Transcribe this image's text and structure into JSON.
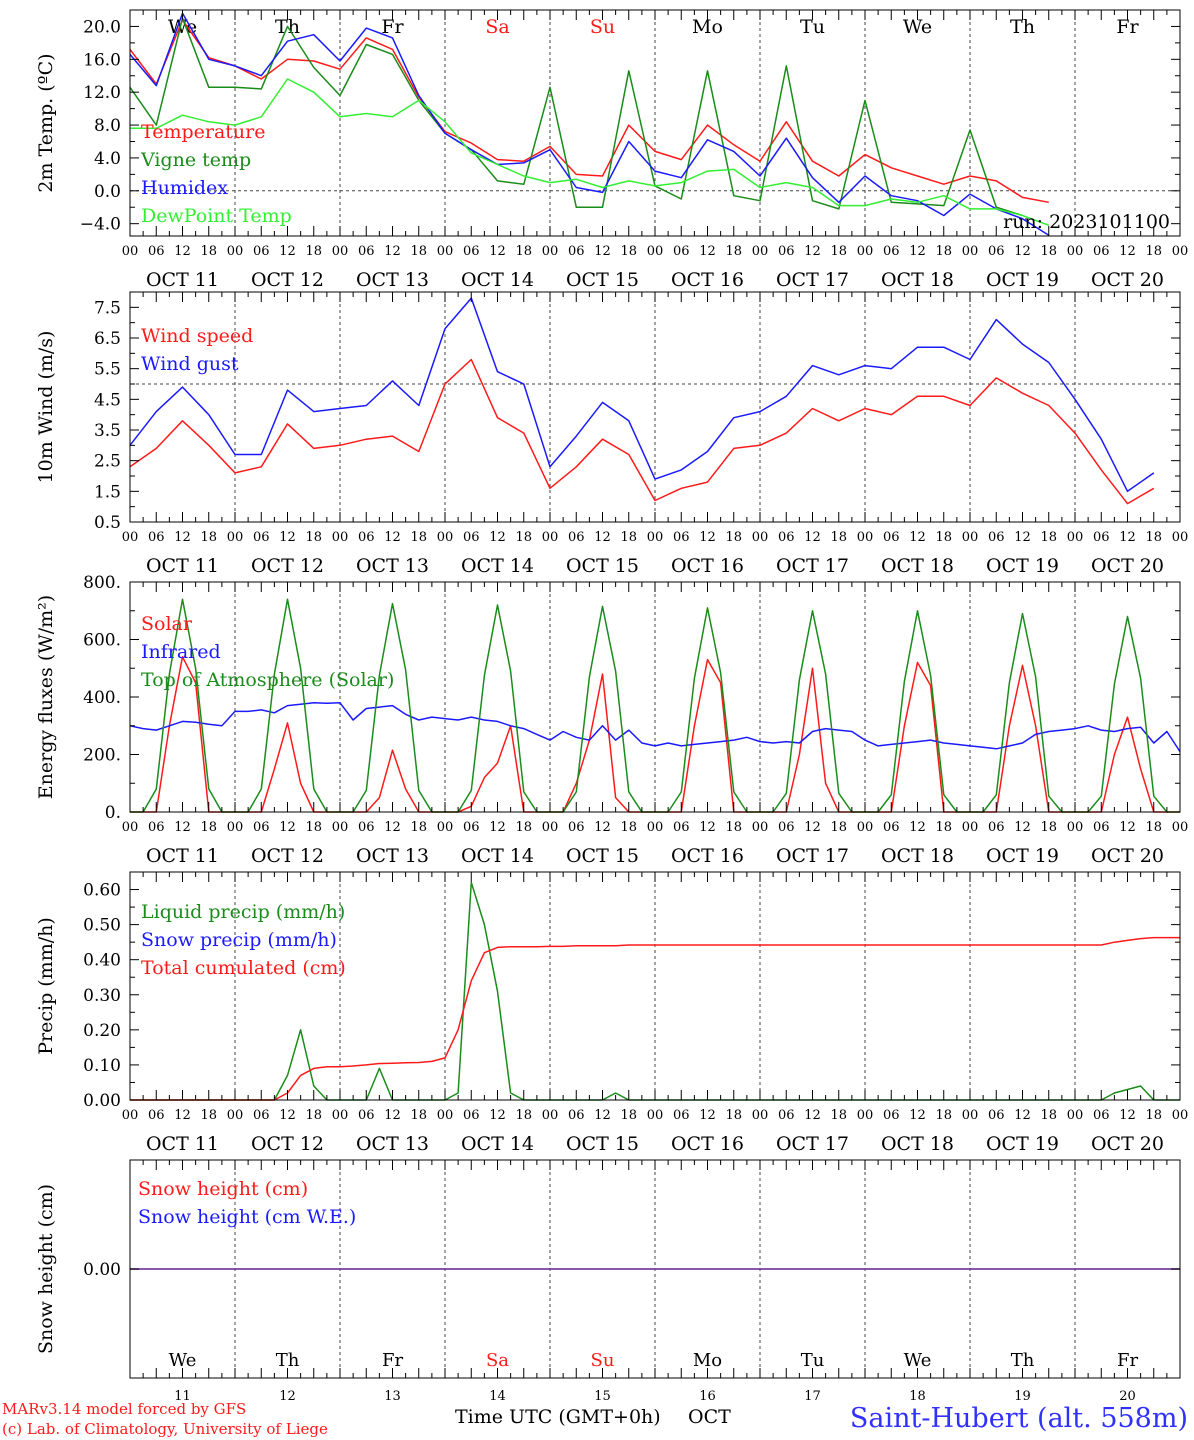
{
  "colors": {
    "red": "#ff1a1a",
    "green": "#1a8c1a",
    "blue": "#1a1aff",
    "lightgreen": "#33ee33",
    "purple": "#7a3fa0",
    "frame": "#000000",
    "grid": "#444444",
    "station": "#3030ff"
  },
  "days": {
    "weekdays": [
      "We",
      "Th",
      "Fr",
      "Sa",
      "Su",
      "Mo",
      "Tu",
      "We",
      "Th",
      "Fr"
    ],
    "weekend_flags": [
      false,
      false,
      false,
      true,
      true,
      false,
      false,
      false,
      false,
      false
    ],
    "dates": [
      "OCT 11",
      "OCT 12",
      "OCT 13",
      "OCT 14",
      "OCT 15",
      "OCT 16",
      "OCT 17",
      "OCT 18",
      "OCT 19",
      "OCT 20"
    ],
    "day_numbers": [
      "11",
      "12",
      "13",
      "14",
      "15",
      "16",
      "17",
      "18",
      "19",
      "20"
    ],
    "hour_ticks": [
      "00",
      "06",
      "12",
      "18"
    ],
    "end_tick": "00"
  },
  "footer": {
    "model": "MARv3.14 model forced by GFS",
    "lab": "(c) Lab. of Climatology, University of Liege",
    "axis": "Time UTC (GMT+0h)",
    "month": "OCT",
    "station": "Saint-Hubert (alt. 558m)"
  },
  "chart_data": [
    {
      "type": "line",
      "ylabel": "2m Temp. (ºC)",
      "ylim": [
        -5.5,
        22.0
      ],
      "yticks": [
        -4.0,
        0.0,
        4.0,
        8.0,
        12.0,
        16.0,
        20.0
      ],
      "ytick_labels": [
        "−4.0",
        "0.0",
        "4.0",
        "8.0",
        "12.0",
        "16.0",
        "20.0"
      ],
      "hline": 0.0,
      "show_weekdays": true,
      "annotation": "run: 2023101100",
      "x_hours": [
        0,
        6,
        12,
        18,
        24,
        30,
        36,
        42,
        48,
        54,
        60,
        66,
        72,
        78,
        84,
        90,
        96,
        102,
        108,
        114,
        120,
        126,
        132,
        138,
        144,
        150,
        156,
        162,
        168,
        174,
        180,
        186,
        192,
        198,
        204,
        210,
        216,
        222,
        228,
        234,
        240
      ],
      "series": [
        {
          "name": "Temperature",
          "color": "red",
          "values": [
            17.2,
            13.0,
            20.8,
            16.2,
            15.2,
            13.6,
            16.0,
            15.8,
            14.8,
            18.6,
            17.2,
            11.4,
            7.2,
            5.8,
            3.8,
            3.6,
            5.4,
            2.0,
            1.8,
            8.0,
            4.8,
            3.8,
            8.0,
            5.6,
            3.6,
            8.4,
            3.6,
            1.8,
            4.4,
            2.8,
            1.8,
            0.8,
            1.8,
            1.2,
            -0.8,
            -1.4,
            null,
            null,
            null,
            null,
            null
          ]
        },
        {
          "name": "Vigne temp",
          "color": "green",
          "values": [
            12.6,
            8.0,
            21.0,
            12.6,
            12.6,
            12.4,
            20.0,
            15.0,
            11.6,
            17.8,
            16.6,
            11.0,
            7.0,
            5.0,
            1.2,
            0.8,
            12.6,
            -2.0,
            -2.0,
            14.6,
            0.6,
            -1.0,
            14.6,
            -0.6,
            -1.2,
            15.2,
            -1.2,
            -2.2,
            11.0,
            -1.4,
            -1.6,
            -1.8,
            7.4,
            -2.0,
            -3.0,
            null,
            null,
            null,
            null,
            null,
            null
          ]
        },
        {
          "name": "Humidex",
          "color": "blue",
          "values": [
            16.6,
            12.8,
            21.6,
            16.0,
            15.2,
            14.0,
            18.2,
            19.0,
            15.8,
            19.8,
            18.6,
            11.6,
            7.0,
            5.0,
            3.2,
            3.4,
            5.0,
            0.4,
            -0.2,
            6.0,
            2.4,
            1.6,
            6.2,
            4.8,
            1.8,
            6.4,
            1.6,
            -1.4,
            1.8,
            -0.6,
            -1.2,
            -3.0,
            -0.4,
            -2.2,
            -3.4,
            -5.4,
            null,
            null,
            null,
            null,
            null
          ]
        },
        {
          "name": "DewPoint Temp",
          "color": "lightgreen",
          "values": [
            7.6,
            7.6,
            9.2,
            8.4,
            8.0,
            9.0,
            13.6,
            12.0,
            9.0,
            9.4,
            9.0,
            11.0,
            8.4,
            4.6,
            3.2,
            1.8,
            1.0,
            1.4,
            0.4,
            1.2,
            0.6,
            1.0,
            2.4,
            2.6,
            0.4,
            1.0,
            0.4,
            -1.8,
            -1.8,
            -1.0,
            -1.4,
            -0.6,
            -2.2,
            -2.2,
            -3.0,
            -4.2,
            null,
            null,
            null,
            null,
            null
          ]
        }
      ]
    },
    {
      "type": "line",
      "ylabel": "10m Wind (m/s)",
      "ylim": [
        0.5,
        8.0
      ],
      "yticks": [
        0.5,
        1.5,
        2.5,
        3.5,
        4.5,
        5.5,
        6.5,
        7.5
      ],
      "ytick_labels": [
        "0.5",
        "1.5",
        "2.5",
        "3.5",
        "4.5",
        "5.5",
        "6.5",
        "7.5"
      ],
      "hline": 5.0,
      "x_hours": [
        0,
        6,
        12,
        18,
        24,
        30,
        36,
        42,
        48,
        54,
        60,
        66,
        72,
        78,
        84,
        90,
        96,
        102,
        108,
        114,
        120,
        126,
        132,
        138,
        144,
        150,
        156,
        162,
        168,
        174,
        180,
        186,
        192,
        198,
        204,
        210,
        216,
        222,
        228,
        234,
        240
      ],
      "series": [
        {
          "name": "Wind speed",
          "color": "red",
          "values": [
            2.3,
            2.9,
            3.8,
            3.0,
            2.1,
            2.3,
            3.7,
            2.9,
            3.0,
            3.2,
            3.3,
            2.8,
            5.0,
            5.8,
            3.9,
            3.4,
            1.6,
            2.3,
            3.2,
            2.7,
            1.2,
            1.6,
            1.8,
            2.9,
            3.0,
            3.4,
            4.2,
            3.8,
            4.2,
            4.0,
            4.6,
            4.6,
            4.3,
            5.2,
            4.7,
            4.3,
            3.4,
            2.2,
            1.1,
            1.6,
            null
          ]
        },
        {
          "name": "Wind gust",
          "color": "blue",
          "values": [
            3.0,
            4.1,
            4.9,
            4.0,
            2.7,
            2.7,
            4.8,
            4.1,
            4.2,
            4.3,
            5.1,
            4.3,
            6.8,
            7.8,
            5.4,
            5.0,
            2.3,
            3.3,
            4.4,
            3.8,
            1.9,
            2.2,
            2.8,
            3.9,
            4.1,
            4.6,
            5.6,
            5.3,
            5.6,
            5.5,
            6.2,
            6.2,
            5.8,
            7.1,
            6.3,
            5.7,
            4.5,
            3.2,
            1.5,
            2.1,
            null
          ]
        }
      ]
    },
    {
      "type": "line",
      "ylabel": "Energy fluxes (W/m²)",
      "ylim": [
        0,
        800
      ],
      "yticks": [
        0,
        200,
        400,
        600,
        800
      ],
      "ytick_labels": [
        "0.",
        "200.",
        "400.",
        "600.",
        "800."
      ],
      "x_hours": [
        0,
        3,
        6,
        9,
        12,
        15,
        18,
        21,
        24,
        27,
        30,
        33,
        36,
        39,
        42,
        45,
        48,
        51,
        54,
        57,
        60,
        63,
        66,
        69,
        72,
        75,
        78,
        81,
        84,
        87,
        90,
        93,
        96,
        99,
        102,
        105,
        108,
        111,
        114,
        117,
        120,
        123,
        126,
        129,
        132,
        135,
        138,
        141,
        144,
        147,
        150,
        153,
        156,
        159,
        162,
        165,
        168,
        171,
        174,
        177,
        180,
        183,
        186,
        189,
        192,
        195,
        198,
        201,
        204,
        207,
        210,
        213,
        216,
        219,
        222,
        225,
        228,
        231,
        234,
        237,
        240
      ],
      "series": [
        {
          "name": "Solar",
          "color": "red",
          "values": [
            0,
            0,
            0,
            300,
            540,
            450,
            0,
            0,
            0,
            0,
            0,
            150,
            310,
            100,
            0,
            0,
            0,
            0,
            0,
            50,
            215,
            80,
            0,
            0,
            0,
            0,
            20,
            120,
            170,
            300,
            0,
            0,
            0,
            0,
            100,
            250,
            480,
            50,
            0,
            0,
            0,
            0,
            0,
            300,
            530,
            450,
            0,
            0,
            0,
            0,
            0,
            200,
            500,
            100,
            0,
            0,
            0,
            0,
            0,
            300,
            520,
            440,
            0,
            0,
            0,
            0,
            0,
            300,
            510,
            300,
            0,
            0,
            0,
            0,
            0,
            200,
            330,
            150,
            0,
            0,
            0
          ]
        },
        {
          "name": "Infrared",
          "color": "blue",
          "values": [
            300,
            290,
            285,
            300,
            315,
            312,
            305,
            300,
            350,
            350,
            355,
            345,
            370,
            375,
            380,
            378,
            380,
            320,
            360,
            365,
            370,
            340,
            320,
            330,
            325,
            320,
            330,
            320,
            315,
            300,
            290,
            270,
            250,
            280,
            260,
            250,
            300,
            250,
            285,
            240,
            230,
            240,
            230,
            235,
            240,
            245,
            250,
            260,
            245,
            240,
            245,
            240,
            280,
            290,
            285,
            280,
            250,
            230,
            235,
            240,
            245,
            250,
            240,
            235,
            230,
            225,
            220,
            230,
            240,
            270,
            280,
            285,
            290,
            300,
            285,
            280,
            290,
            295,
            240,
            280,
            210
          ]
        },
        {
          "name": "Top of Atmosphere (Solar)",
          "color": "green",
          "values": [
            0,
            0,
            80,
            480,
            740,
            500,
            80,
            0,
            0,
            0,
            80,
            480,
            740,
            500,
            80,
            0,
            0,
            0,
            75,
            475,
            725,
            495,
            75,
            0,
            0,
            0,
            75,
            475,
            720,
            490,
            70,
            0,
            0,
            0,
            70,
            470,
            715,
            490,
            70,
            0,
            0,
            0,
            70,
            465,
            710,
            485,
            70,
            0,
            0,
            0,
            65,
            460,
            700,
            480,
            65,
            0,
            0,
            0,
            60,
            455,
            700,
            475,
            60,
            0,
            0,
            0,
            60,
            450,
            690,
            470,
            55,
            0,
            0,
            0,
            55,
            445,
            680,
            465,
            55,
            0,
            0
          ]
        }
      ]
    },
    {
      "type": "line",
      "ylabel": "Precip (mm/h)",
      "ylim": [
        0,
        0.65
      ],
      "yticks": [
        0,
        0.1,
        0.2,
        0.3,
        0.4,
        0.5,
        0.6
      ],
      "ytick_labels": [
        "0.00",
        "0.10",
        "0.20",
        "0.30",
        "0.40",
        "0.50",
        "0.60"
      ],
      "x_hours": [
        0,
        3,
        6,
        9,
        12,
        15,
        18,
        21,
        24,
        27,
        30,
        33,
        36,
        39,
        42,
        45,
        48,
        51,
        54,
        57,
        60,
        63,
        66,
        69,
        72,
        75,
        78,
        81,
        84,
        87,
        90,
        93,
        96,
        99,
        102,
        105,
        108,
        111,
        114,
        117,
        120,
        123,
        126,
        129,
        132,
        135,
        138,
        141,
        144,
        147,
        150,
        153,
        156,
        159,
        162,
        165,
        168,
        171,
        174,
        177,
        180,
        183,
        186,
        189,
        192,
        195,
        198,
        201,
        204,
        207,
        210,
        213,
        216,
        219,
        222,
        225,
        228,
        231,
        234,
        237,
        240
      ],
      "series": [
        {
          "name": "Liquid precip (mm/h)",
          "color": "green",
          "values": [
            0,
            0,
            0,
            0,
            0,
            0,
            0,
            0,
            0,
            0,
            0,
            0,
            0.07,
            0.2,
            0.04,
            0,
            0,
            0,
            0,
            0.09,
            0,
            0,
            0,
            0,
            0,
            0.02,
            0.62,
            0.5,
            0.31,
            0.02,
            0,
            0,
            0,
            0,
            0,
            0,
            0,
            0.02,
            0,
            0,
            0,
            0,
            0,
            0,
            0,
            0,
            0,
            0,
            0,
            0,
            0,
            0,
            0,
            0,
            0,
            0,
            0,
            0,
            0,
            0,
            0,
            0,
            0,
            0,
            0,
            0,
            0,
            0,
            0,
            0,
            0,
            0,
            0,
            0,
            0,
            0.02,
            0.03,
            0.04,
            0,
            0,
            0
          ]
        },
        {
          "name": "Snow precip (mm/h)",
          "color": "blue",
          "values": []
        },
        {
          "name": "Total cumulated (cm)",
          "color": "red",
          "values": [
            0,
            0,
            0,
            0,
            0,
            0,
            0,
            0,
            0,
            0,
            0,
            0,
            0.02,
            0.07,
            0.09,
            0.095,
            0.095,
            0.097,
            0.1,
            0.104,
            0.105,
            0.106,
            0.107,
            0.11,
            0.12,
            0.2,
            0.34,
            0.42,
            0.435,
            0.437,
            0.437,
            0.437,
            0.438,
            0.438,
            0.44,
            0.44,
            0.44,
            0.44,
            0.442,
            0.442,
            0.442,
            0.442,
            0.442,
            0.442,
            0.442,
            0.442,
            0.442,
            0.442,
            0.442,
            0.442,
            0.442,
            0.442,
            0.442,
            0.442,
            0.442,
            0.442,
            0.442,
            0.442,
            0.442,
            0.442,
            0.442,
            0.442,
            0.442,
            0.442,
            0.442,
            0.442,
            0.442,
            0.442,
            0.442,
            0.442,
            0.442,
            0.442,
            0.442,
            0.442,
            0.442,
            0.45,
            0.455,
            0.46,
            0.463,
            0.463,
            0.463
          ]
        }
      ]
    },
    {
      "type": "line",
      "ylabel": "Snow height (cm)",
      "ylim": [
        -1,
        1
      ],
      "yticks": [
        0
      ],
      "ytick_labels": [
        "0.00"
      ],
      "x_hours": [
        0,
        240
      ],
      "series": [
        {
          "name": "Snow height (cm)",
          "color": "red",
          "values": [
            0,
            0
          ]
        },
        {
          "name": "Snow height (cm W.E.)",
          "color": "blue",
          "values": [
            0,
            0
          ]
        }
      ]
    }
  ]
}
